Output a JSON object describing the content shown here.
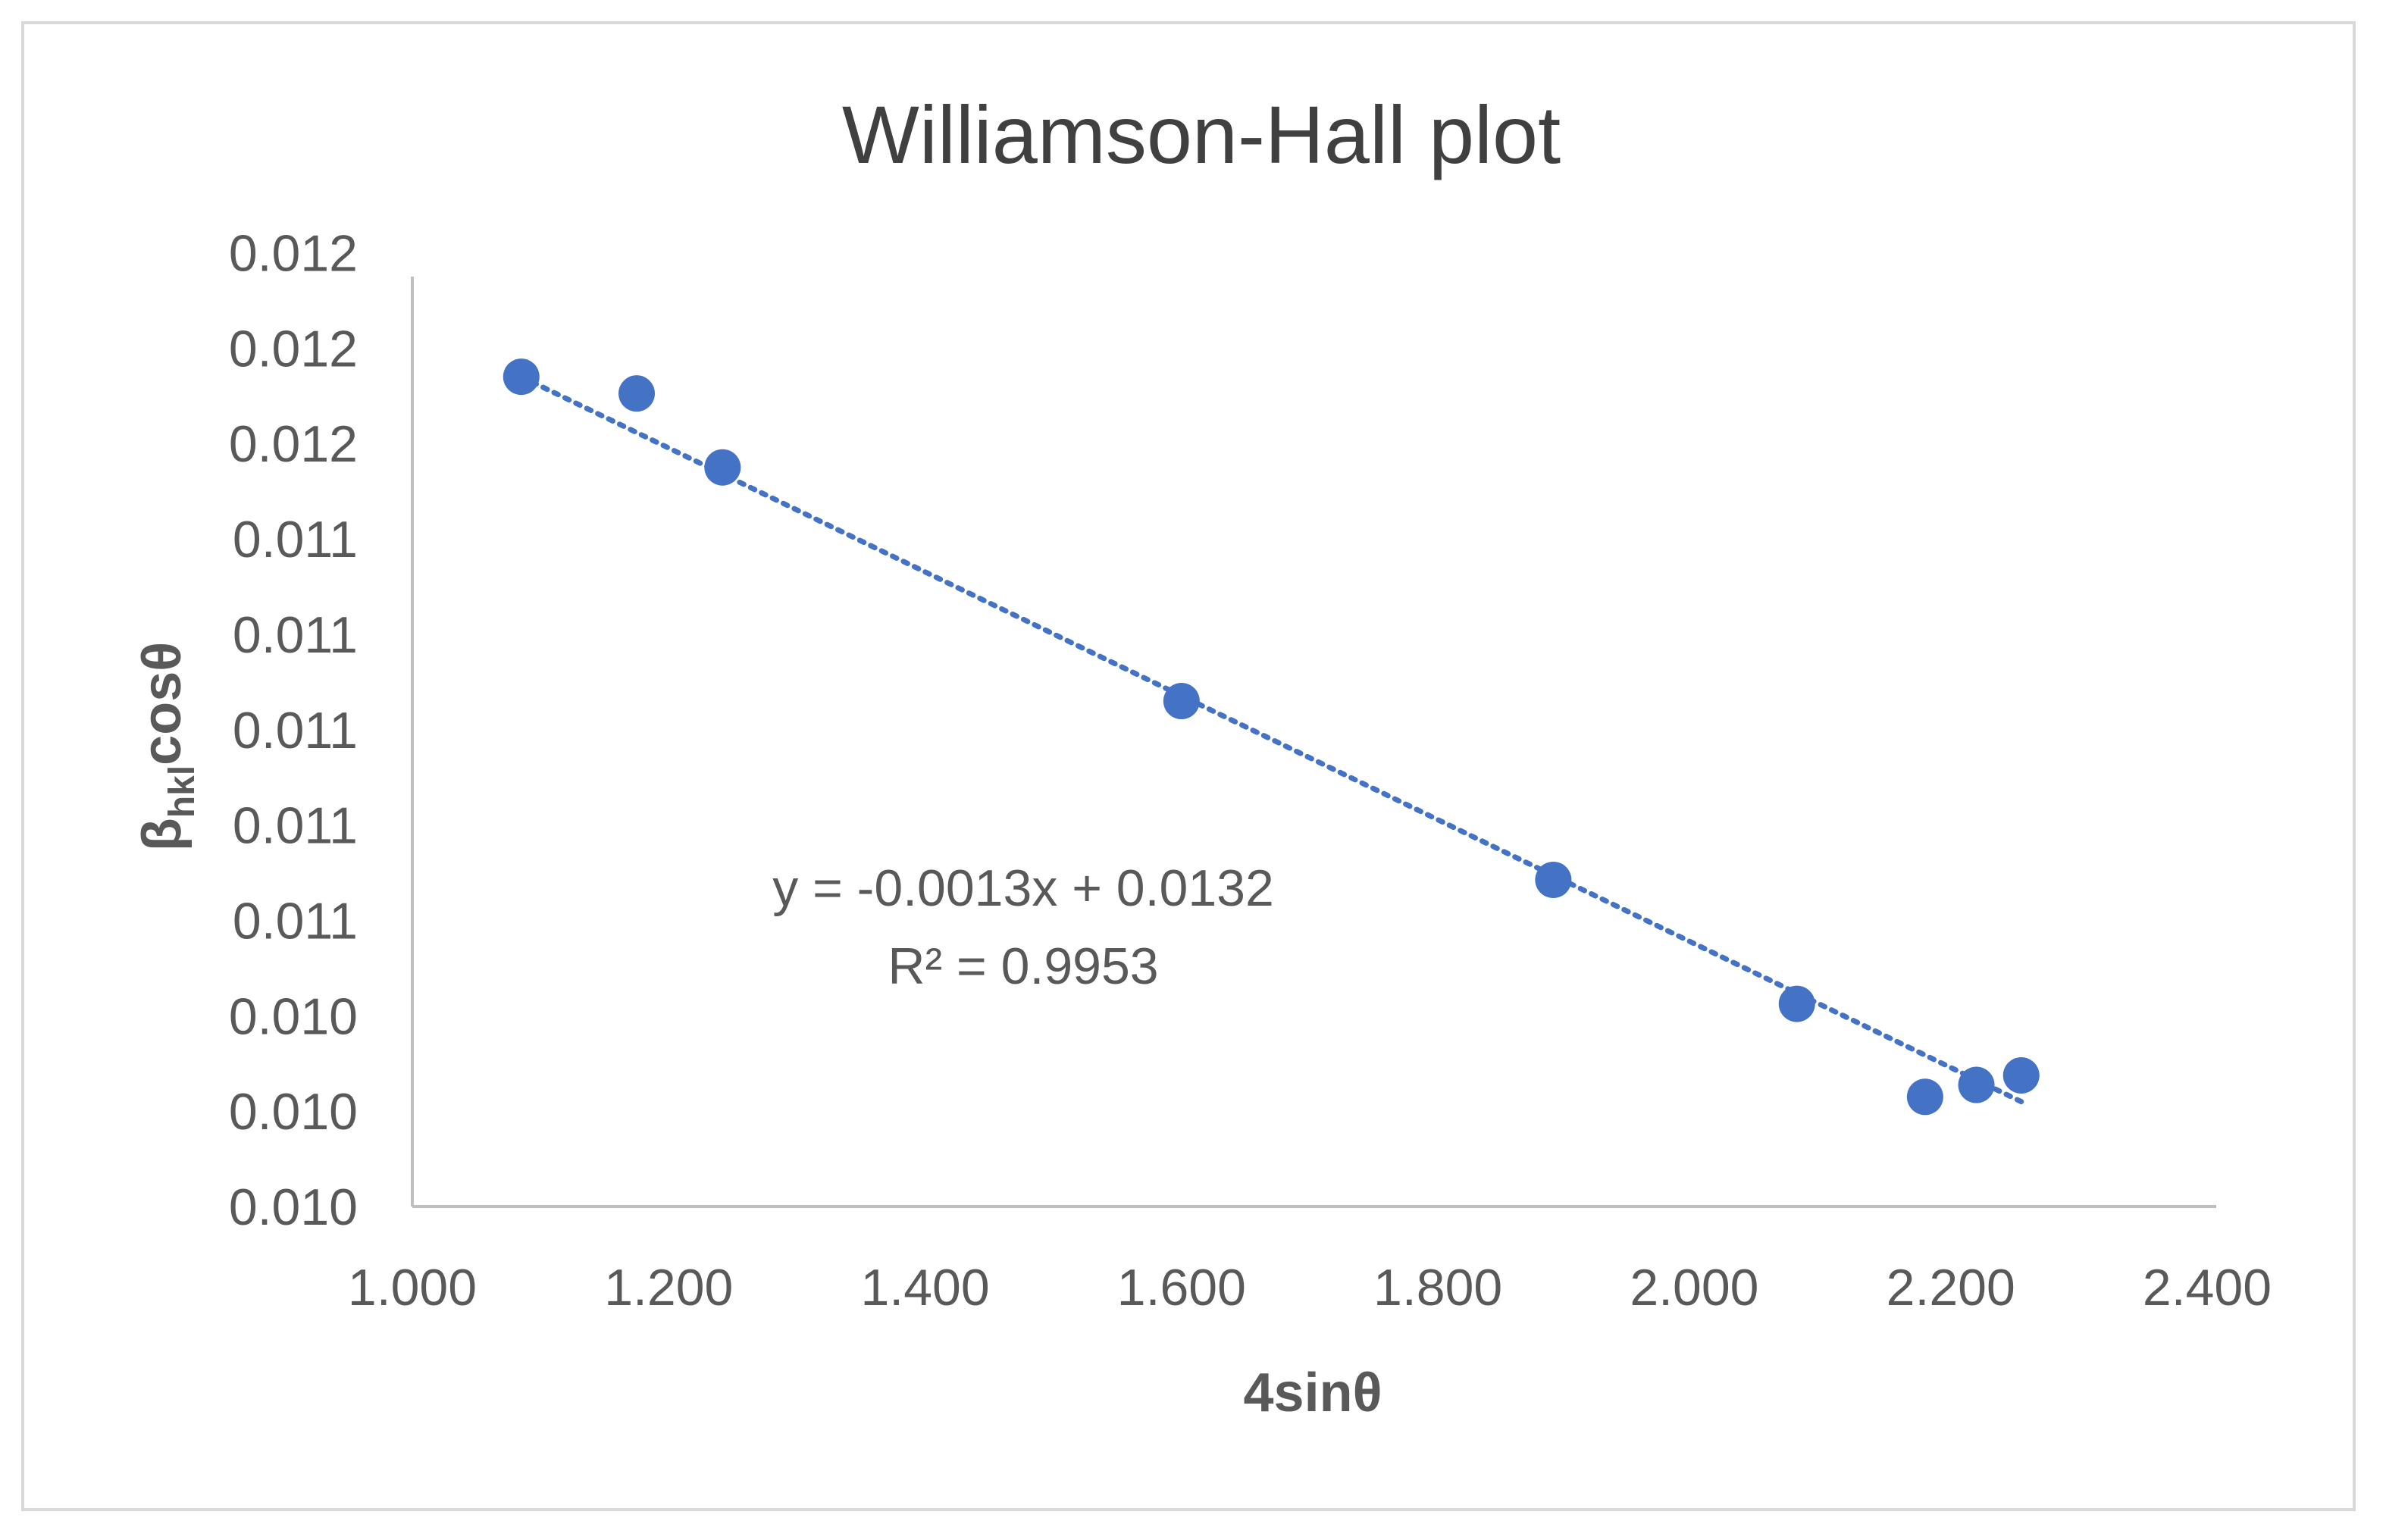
{
  "chart_data": {
    "type": "scatter",
    "title": "Williamson-Hall plot",
    "xlabel": "4sinθ",
    "ylabel_main": "β",
    "ylabel_sub": "hkl",
    "ylabel_tail": "cosθ",
    "xlim": [
      1.0,
      2.4
    ],
    "ylim": [
      0.00995,
      0.0119
    ],
    "x_ticks": [
      1.0,
      1.2,
      1.4,
      1.6,
      1.8,
      2.0,
      2.2,
      2.4
    ],
    "x_tick_labels": [
      "1.000",
      "1.200",
      "1.400",
      "1.600",
      "1.800",
      "2.000",
      "2.200",
      "2.400"
    ],
    "y_ticks": [
      0.00995,
      0.01015,
      0.01035,
      0.01055,
      0.01075,
      0.01095,
      0.01115,
      0.01135,
      0.01155,
      0.01175,
      0.01195
    ],
    "y_tick_labels": [
      "0.010",
      "0.010",
      "0.010",
      "0.011",
      "0.011",
      "0.011",
      "0.011",
      "0.011",
      "0.012",
      "0.012",
      "0.012"
    ],
    "series": [
      {
        "x": [
          1.085,
          1.175,
          1.242,
          1.6,
          1.89,
          2.08,
          2.18,
          2.22,
          2.255
        ],
        "y": [
          0.01169,
          0.011655,
          0.0115,
          0.01101,
          0.010635,
          0.010375,
          0.01018,
          0.010205,
          0.010225
        ],
        "color": "#4472c4"
      }
    ],
    "trendline": {
      "x": [
        1.085,
        2.255
      ],
      "y": [
        0.01169,
        0.01017
      ],
      "color": "#4472c4",
      "style": "dotted"
    },
    "equation": "y = -0.0013x + 0.0132",
    "r_squared_label": "R² = 0.9953",
    "grid": false,
    "legend": "none"
  }
}
